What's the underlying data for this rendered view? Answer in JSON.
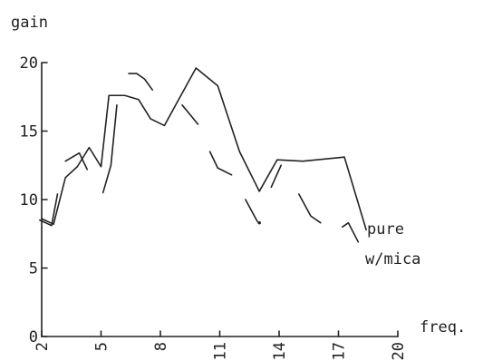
{
  "chart_data": {
    "type": "line",
    "title": "",
    "ylabel": "gain",
    "xlabel": "freq.",
    "xlim": [
      2,
      20
    ],
    "ylim": [
      0,
      20
    ],
    "x_ticks": [
      2,
      5,
      8,
      11,
      14,
      17,
      20
    ],
    "x_tick_labels": [
      "2",
      "5",
      "8",
      "11",
      "14",
      "17",
      "20"
    ],
    "y_ticks": [
      0,
      5,
      10,
      15,
      20
    ],
    "y_tick_labels": [
      "0",
      "5",
      "10",
      "15",
      "20"
    ],
    "grid": false,
    "series": [
      {
        "name": "pure",
        "style": "solid",
        "points": [
          [
            2.0,
            8.6
          ],
          [
            2.6,
            8.2
          ],
          [
            3.2,
            11.6
          ],
          [
            3.8,
            12.4
          ],
          [
            4.4,
            13.8
          ],
          [
            5.0,
            12.4
          ],
          [
            5.4,
            17.6
          ],
          [
            6.2,
            17.6
          ],
          [
            6.9,
            17.3
          ],
          [
            7.5,
            15.9
          ],
          [
            8.2,
            15.4
          ],
          [
            9.8,
            19.6
          ],
          [
            10.9,
            18.3
          ],
          [
            12.0,
            13.5
          ],
          [
            13.0,
            10.6
          ],
          [
            13.9,
            12.9
          ],
          [
            15.2,
            12.8
          ],
          [
            17.3,
            13.1
          ],
          [
            18.4,
            7.8
          ]
        ]
      },
      {
        "name": "w/mica",
        "style": "dashed",
        "segments": [
          [
            [
              1.9,
              8.5
            ],
            [
              2.5,
              8.1
            ],
            [
              2.8,
              10.4
            ]
          ],
          [
            [
              3.2,
              12.8
            ],
            [
              3.9,
              13.4
            ],
            [
              4.3,
              12.2
            ]
          ],
          [
            [
              5.1,
              10.5
            ],
            [
              5.5,
              12.5
            ],
            [
              5.8,
              16.9
            ]
          ],
          [
            [
              6.4,
              19.2
            ],
            [
              6.8,
              19.2
            ],
            [
              7.2,
              18.8
            ],
            [
              7.6,
              18.0
            ]
          ],
          [
            [
              9.1,
              16.9
            ],
            [
              9.9,
              15.5
            ]
          ],
          [
            [
              10.5,
              13.5
            ],
            [
              10.9,
              12.3
            ],
            [
              11.6,
              11.8
            ]
          ],
          [
            [
              12.3,
              10.0
            ],
            [
              12.9,
              8.4
            ]
          ],
          [
            [
              13.6,
              10.9
            ],
            [
              14.1,
              12.5
            ]
          ],
          [
            [
              15.0,
              10.4
            ],
            [
              15.6,
              8.8
            ],
            [
              16.1,
              8.3
            ]
          ],
          [
            [
              17.2,
              8.0
            ],
            [
              17.5,
              8.3
            ],
            [
              18.0,
              6.9
            ]
          ]
        ]
      }
    ]
  }
}
